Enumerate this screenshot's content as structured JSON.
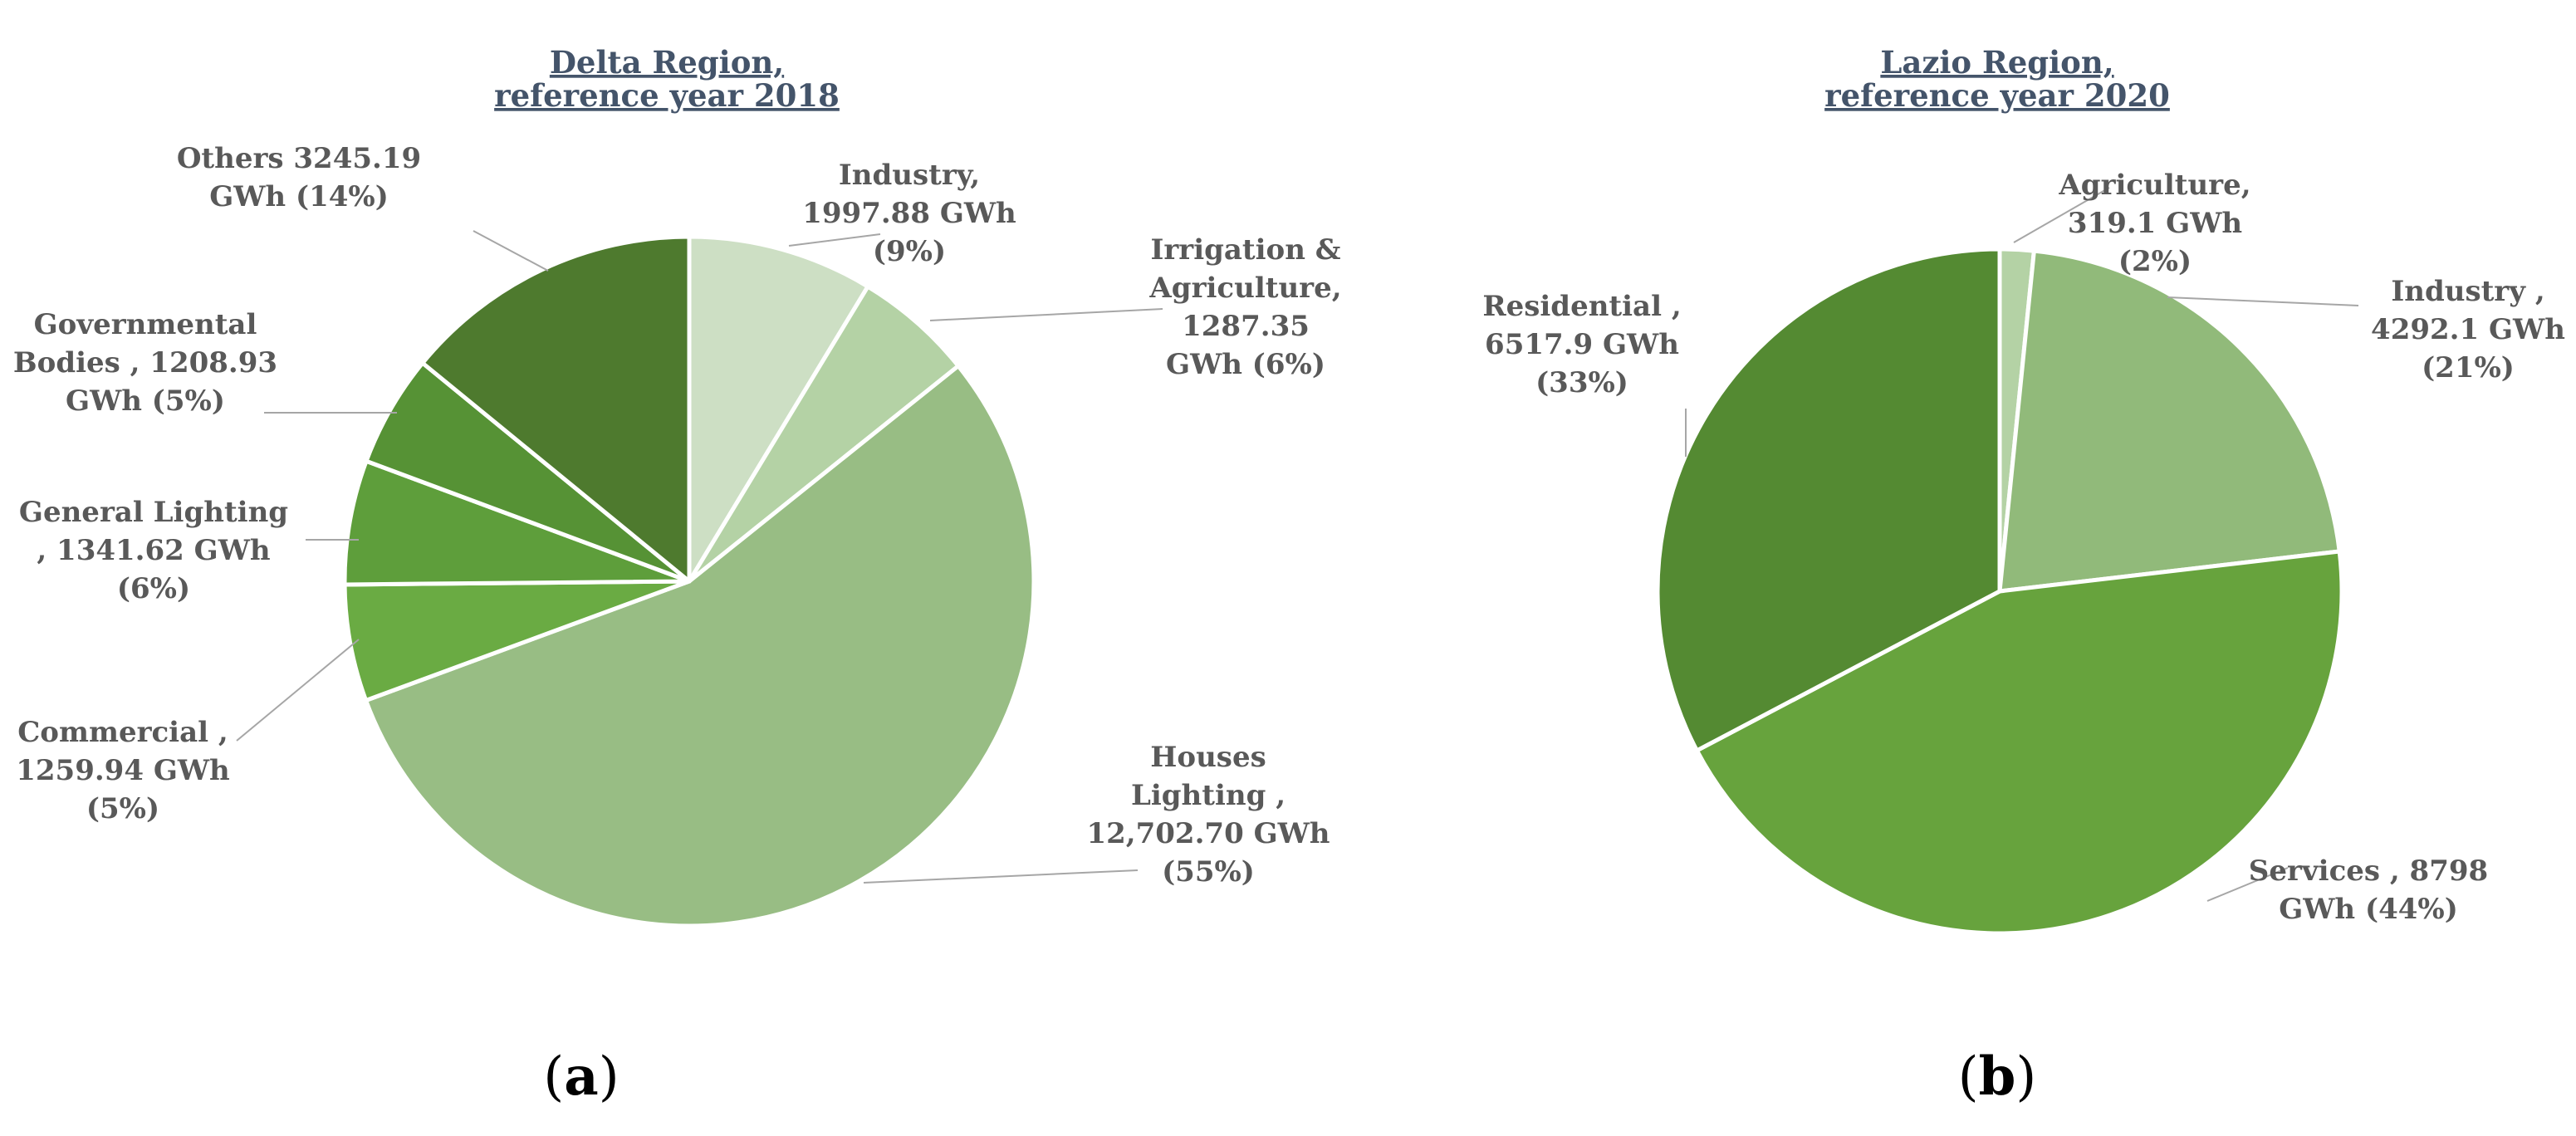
{
  "chart_data": [
    {
      "type": "pie",
      "panel": "a",
      "title_lines": [
        "Delta Region,",
        "reference year 2018"
      ],
      "unit": "GWh",
      "slices": [
        {
          "name": "Industry",
          "value": 1997.88,
          "percent": 9,
          "color": "#cddfc4",
          "label_lines": [
            "Industry,",
            "1997.88 GWh",
            "(9%)"
          ]
        },
        {
          "name": "Irrigation & Agriculture",
          "value": 1287.35,
          "percent": 6,
          "color": "#b4d2a5",
          "label_lines": [
            "Irrigation &",
            "Agriculture,",
            "1287.35",
            "GWh (6%)"
          ]
        },
        {
          "name": "Houses Lighting",
          "value": 12702.7,
          "percent": 55,
          "color": "#98bd84",
          "label_lines": [
            "Houses",
            "Lighting ,",
            "12,702.70 GWh",
            "(55%)"
          ]
        },
        {
          "name": "Commercial",
          "value": 1259.94,
          "percent": 5,
          "color": "#6aab43",
          "label_lines": [
            "Commercial ,",
            "1259.94 GWh",
            "(5%)"
          ]
        },
        {
          "name": "General Lighting",
          "value": 1341.62,
          "percent": 6,
          "color": "#5e9e3b",
          "label_lines": [
            "General Lighting",
            ", 1341.62 GWh",
            "(6%)"
          ]
        },
        {
          "name": "Governmental Bodies",
          "value": 1208.93,
          "percent": 5,
          "color": "#569235",
          "label_lines": [
            "Governmental",
            "Bodies , 1208.93",
            "GWh (5%)"
          ]
        },
        {
          "name": "Others",
          "value": 3245.19,
          "percent": 14,
          "color": "#4e7a2e",
          "label_lines": [
            "Others 3245.19",
            "GWh (14%)"
          ]
        }
      ]
    },
    {
      "type": "pie",
      "panel": "b",
      "title_lines": [
        "Lazio Region,",
        "reference year 2020"
      ],
      "unit": "GWh",
      "slices": [
        {
          "name": "Agriculture",
          "value": 319.1,
          "percent": 2,
          "color": "#b4d2a5",
          "label_lines": [
            "Agriculture,",
            "319.1 GWh",
            "(2%)"
          ]
        },
        {
          "name": "Industry",
          "value": 4292.1,
          "percent": 21,
          "color": "#91ba7a",
          "label_lines": [
            "Industry ,",
            "4292.1 GWh",
            "(21%)"
          ]
        },
        {
          "name": "Services",
          "value": 8798,
          "percent": 44,
          "color": "#67a33d",
          "label_lines": [
            "Services , 8798",
            "GWh (44%)"
          ]
        },
        {
          "name": "Residential",
          "value": 6517.9,
          "percent": 33,
          "color": "#548a32",
          "label_lines": [
            "Residential ,",
            "6517.9 GWh",
            "(33%)"
          ]
        }
      ]
    }
  ],
  "panels": [
    {
      "letter": "a"
    },
    {
      "letter": "b"
    }
  ]
}
